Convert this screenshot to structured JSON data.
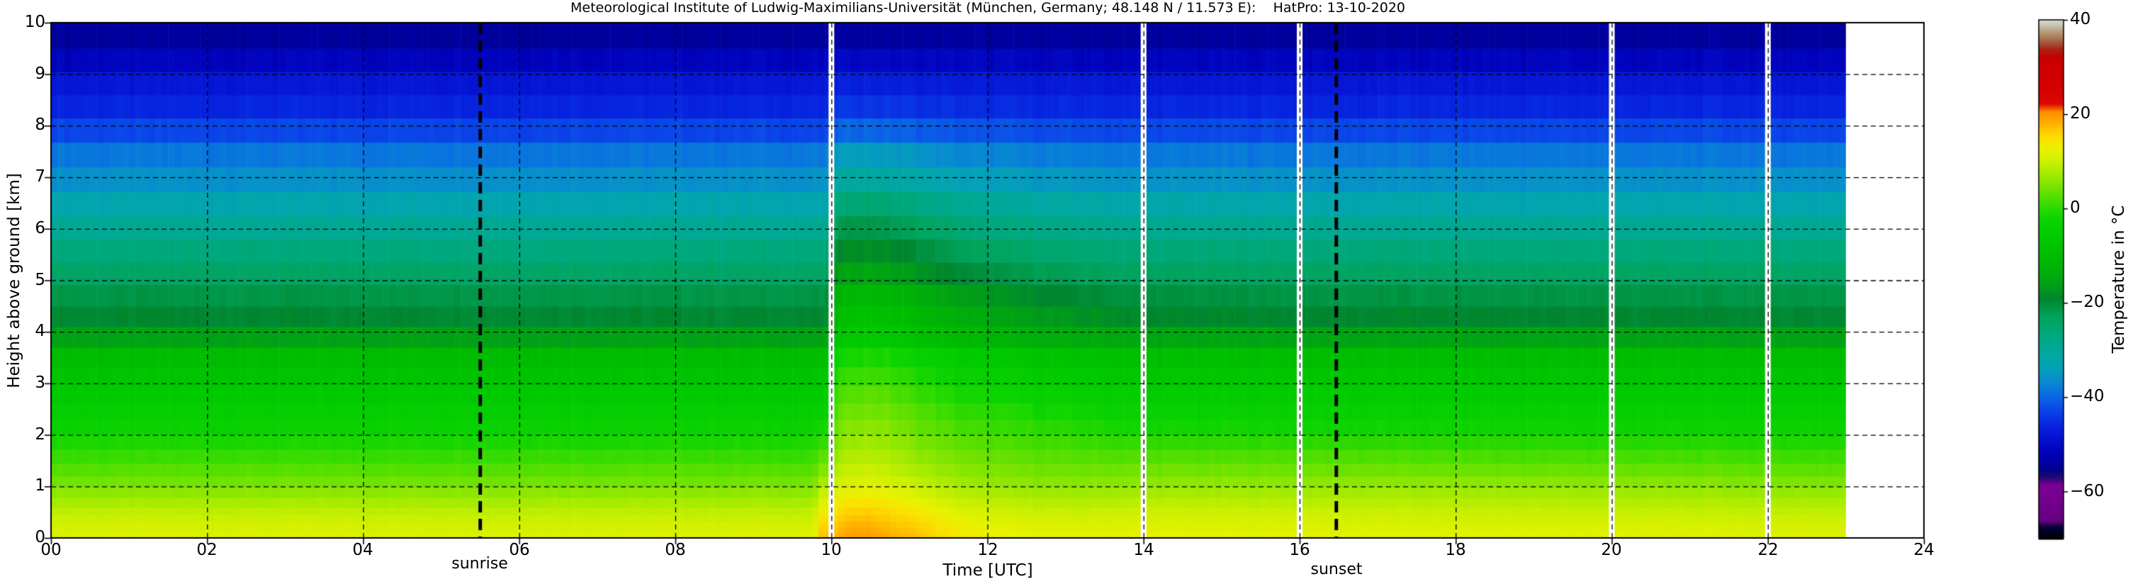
{
  "title": "Meteorological Institute of Ludwig-Maximilians-Universität (München, Germany; 48.148 N / 11.573 E):    HatPro: 13-10-2020",
  "axes": {
    "xlabel": "Time [UTC]",
    "ylabel": "Height above ground [km]",
    "x_tick_labels": [
      "00",
      "02",
      "04",
      "06",
      "08",
      "10",
      "12",
      "14",
      "16",
      "18",
      "20",
      "22",
      "24"
    ],
    "y_tick_labels": [
      "0",
      "1",
      "2",
      "3",
      "4",
      "5",
      "6",
      "7",
      "8",
      "9",
      "10"
    ],
    "x_range_hours": [
      0,
      24
    ],
    "y_range_km": [
      0,
      10
    ],
    "grid": "dashed-black"
  },
  "annotations": {
    "sunrise_label": "sunrise",
    "sunset_label": "sunset",
    "sunrise_time_utc": 5.5,
    "sunset_time_utc": 16.47
  },
  "colorbar": {
    "label": "Temperature in °C",
    "tick_labels": [
      "40",
      "20",
      "0",
      "−20",
      "−40",
      "−60"
    ],
    "tick_values": [
      40,
      20,
      0,
      -20,
      -40,
      -60
    ],
    "range_c": [
      -70,
      40
    ],
    "color_stops": [
      [
        -70,
        "#000000"
      ],
      [
        -68.9,
        "#00001e"
      ],
      [
        -67.6,
        "#000038"
      ],
      [
        -66.9,
        "#2e004e"
      ],
      [
        -66.2,
        "#660082"
      ],
      [
        -58.6,
        "#7c0094"
      ],
      [
        -57.6,
        "#44077c"
      ],
      [
        -56.6,
        "#140c74"
      ],
      [
        -55.2,
        "#000092"
      ],
      [
        -52,
        "#0000b6"
      ],
      [
        -49,
        "#0410d0"
      ],
      [
        -46,
        "#0724de"
      ],
      [
        -43,
        "#0a42e8"
      ],
      [
        -40,
        "#0a66e6"
      ],
      [
        -37,
        "#0888d2"
      ],
      [
        -34,
        "#04a0ba"
      ],
      [
        -31,
        "#00a8a2"
      ],
      [
        -27,
        "#00a880"
      ],
      [
        -23,
        "#00a45c"
      ],
      [
        -20.5,
        "#009240"
      ],
      [
        -19,
        "#00852e"
      ],
      [
        -17,
        "#00991c"
      ],
      [
        -14,
        "#00ac0c"
      ],
      [
        -10,
        "#00bc00"
      ],
      [
        -6,
        "#00ca00"
      ],
      [
        -2,
        "#0cd400"
      ],
      [
        1,
        "#3adc00"
      ],
      [
        4,
        "#6ce200"
      ],
      [
        7,
        "#9eea00"
      ],
      [
        10,
        "#ccf000"
      ],
      [
        12.5,
        "#e8f200"
      ],
      [
        14.5,
        "#f8e400"
      ],
      [
        16.5,
        "#ffcc00"
      ],
      [
        18.5,
        "#ffaa00"
      ],
      [
        20.5,
        "#ff8f00"
      ],
      [
        21.3,
        "#f25400"
      ],
      [
        22.2,
        "#dd0a00"
      ],
      [
        25,
        "#d60000"
      ],
      [
        32,
        "#c80000"
      ],
      [
        33.8,
        "#ac2014"
      ],
      [
        35.3,
        "#a25a40"
      ],
      [
        36.8,
        "#ae8864"
      ],
      [
        38.2,
        "#bfae94"
      ],
      [
        39.2,
        "#cecabc"
      ],
      [
        40,
        "#d6d6d2"
      ]
    ]
  },
  "chart_data": {
    "type": "heatmap",
    "x_name": "time_utc_hours",
    "y_name": "height_above_ground_km",
    "value_name": "temperature_C",
    "data_start_time": 0,
    "data_end_time": 23,
    "data_gap_times": [
      10,
      14,
      16,
      20,
      22
    ],
    "time_resolution_hours": 0.08333,
    "heights": [
      0,
      0.25,
      0.5,
      0.75,
      1,
      1.25,
      1.5,
      2,
      2.5,
      3,
      3.5,
      4,
      4.3,
      4.7,
      5,
      5.5,
      6,
      6.5,
      7,
      7.5,
      8,
      8.5,
      9,
      9.5,
      10
    ],
    "height_layers": [
      0,
      0.1,
      0.2,
      0.32,
      0.45,
      0.6,
      0.78,
      0.98,
      1.2,
      1.45,
      1.72,
      2.0,
      2.3,
      2.62,
      2.96,
      3.32,
      3.7,
      4.1,
      4.5,
      4.92,
      5.35,
      5.8,
      6.25,
      6.72,
      7.2,
      7.68,
      8.15,
      8.6,
      9.05,
      9.5,
      10
    ],
    "times": [
      0,
      9.6,
      9.78,
      9.85,
      9.95,
      10.05,
      10.3,
      10.55,
      10.8,
      11.1,
      11.4,
      11.8,
      12.3,
      13,
      14,
      17,
      20,
      23
    ],
    "temps": [
      [
        11.5,
        10.6,
        9.2,
        7.2,
        5.0,
        3.2,
        1.4,
        -2.0,
        -4.6,
        -7.0,
        -9.8,
        -16.8,
        -19.3,
        -21.0,
        -23.2,
        -26.0,
        -29.0,
        -32.5,
        -36.2,
        -38.8,
        -43.5,
        -46.8,
        -48.5,
        -53.5,
        -55.0
      ],
      [
        11.5,
        10.6,
        9.2,
        7.2,
        5.0,
        3.2,
        1.4,
        -2.0,
        -4.6,
        -7.0,
        -9.8,
        -16.8,
        -19.3,
        -21.0,
        -23.2,
        -26.0,
        -29.0,
        -32.5,
        -36.2,
        -38.8,
        -43.5,
        -46.8,
        -48.5,
        -53.5,
        -55.0
      ],
      [
        11.5,
        10.6,
        9.2,
        7.2,
        5.0,
        3.2,
        1.4,
        -2.0,
        -4.6,
        -7.0,
        -9.8,
        -16.8,
        -19.3,
        -21.0,
        -23.2,
        -26.0,
        -29.0,
        -32.5,
        -36.2,
        -38.8,
        -43.5,
        -46.8,
        -48.5,
        -53.5,
        -55.0
      ],
      [
        17.0,
        15.8,
        13.9,
        11.4,
        8.8,
        6.4,
        4.2,
        -0.4,
        -3.9,
        -6.8,
        -9.7,
        -16.8,
        -19.3,
        -21.0,
        -23.2,
        -26.0,
        -29.0,
        -32.5,
        -36.2,
        -38.8,
        -43.5,
        -46.8,
        -48.5,
        -53.5,
        -55.0
      ],
      [
        17.2,
        15.6,
        13.4,
        10.6,
        7.6,
        5.2,
        3.0,
        -1.2,
        -4.3,
        -6.9,
        -9.8,
        -16.8,
        -19.3,
        -21.0,
        -23.2,
        -26.0,
        -29.0,
        -32.5,
        -36.2,
        -38.8,
        -43.5,
        -46.8,
        -48.5,
        -53.5,
        -55.0
      ],
      [
        18.1,
        16.8,
        15.0,
        12.8,
        10.5,
        8.8,
        7.3,
        4.7,
        2.5,
        0.2,
        -2.6,
        -9.0,
        -10.5,
        -12.8,
        -15.6,
        -19.0,
        -22.4,
        -26.7,
        -31.7,
        -35.4,
        -41.4,
        -45.5,
        -47.7,
        -53.2,
        -54.8
      ],
      [
        19.7,
        18.4,
        16.5,
        14.2,
        11.9,
        10.2,
        8.8,
        6.4,
        4.3,
        2.0,
        -0.8,
        -7.0,
        -8.3,
        -10.8,
        -13.7,
        -17.2,
        -20.7,
        -25.2,
        -30.6,
        -34.6,
        -40.9,
        -45.2,
        -47.5,
        -53.1,
        -54.8
      ],
      [
        19.2,
        18.0,
        16.2,
        14.0,
        11.8,
        10.2,
        8.8,
        6.4,
        4.3,
        2.0,
        -0.9,
        -7.2,
        -8.6,
        -11.0,
        -14.0,
        -17.5,
        -21.0,
        -25.5,
        -30.9,
        -34.9,
        -41.1,
        -45.4,
        -47.6,
        -53.1,
        -54.8
      ],
      [
        18.2,
        17.0,
        15.3,
        13.2,
        11.0,
        9.4,
        8.1,
        5.6,
        3.6,
        1.3,
        -1.6,
        -7.9,
        -9.4,
        -11.8,
        -14.8,
        -18.2,
        -21.6,
        -26.0,
        -31.3,
        -35.3,
        -41.3,
        -45.5,
        -47.7,
        -53.2,
        -54.9
      ],
      [
        17.4,
        16.2,
        14.2,
        12.0,
        9.8,
        8.2,
        6.8,
        4.2,
        2.2,
        -0.1,
        -3.0,
        -9.3,
        -10.9,
        -13.3,
        -16.2,
        -19.6,
        -23.0,
        -27.2,
        -32.3,
        -36.1,
        -41.7,
        -45.8,
        -47.9,
        -53.3,
        -54.9
      ],
      [
        15.4,
        14.3,
        12.6,
        10.5,
        8.4,
        7.0,
        5.6,
        3.0,
        1.0,
        -1.4,
        -4.4,
        -10.8,
        -12.4,
        -14.8,
        -17.7,
        -21.0,
        -24.3,
        -28.3,
        -33.2,
        -36.8,
        -42.1,
        -46.0,
        -48.0,
        -53.3,
        -54.9
      ],
      [
        13.6,
        12.6,
        11.0,
        9.1,
        7.1,
        5.7,
        4.5,
        1.9,
        -0.2,
        -2.7,
        -5.8,
        -12.4,
        -14.2,
        -16.5,
        -19.3,
        -22.5,
        -25.8,
        -29.6,
        -34.2,
        -37.5,
        -42.5,
        -46.3,
        -48.1,
        -53.4,
        -54.9
      ],
      [
        12.6,
        11.7,
        10.2,
        8.3,
        6.3,
        4.9,
        3.7,
        1.1,
        -1.1,
        -3.7,
        -6.9,
        -13.8,
        -15.7,
        -17.9,
        -20.6,
        -23.7,
        -26.9,
        -30.5,
        -34.9,
        -38.0,
        -42.8,
        -46.5,
        -48.2,
        -53.4,
        -54.9
      ],
      [
        12.1,
        11.2,
        9.8,
        7.9,
        5.9,
        4.4,
        3.1,
        0.2,
        -2.2,
        -4.9,
        -8.1,
        -15.2,
        -17.3,
        -19.3,
        -21.8,
        -24.8,
        -27.9,
        -31.4,
        -35.5,
        -38.4,
        -43.1,
        -46.6,
        -48.3,
        -53.5,
        -55.0
      ],
      [
        12.3,
        11.5,
        10.2,
        8.4,
        6.4,
        4.7,
        3.0,
        -0.9,
        -3.6,
        -6.2,
        -9.2,
        -16.2,
        -18.8,
        -20.5,
        -22.7,
        -25.6,
        -28.6,
        -32.1,
        -36.0,
        -38.7,
        -43.3,
        -46.7,
        -48.4,
        -53.5,
        -55.0
      ],
      [
        12.0,
        11.2,
        9.9,
        8.3,
        6.4,
        4.6,
        2.8,
        -1.1,
        -3.9,
        -6.5,
        -9.5,
        -16.5,
        -19.1,
        -20.8,
        -23.0,
        -25.8,
        -28.8,
        -32.3,
        -36.1,
        -38.8,
        -43.4,
        -46.8,
        -48.4,
        -53.5,
        -55.0
      ],
      [
        11.8,
        11.0,
        9.7,
        8.0,
        6.2,
        4.3,
        2.4,
        -1.5,
        -4.2,
        -6.8,
        -9.7,
        -16.7,
        -19.2,
        -20.9,
        -23.1,
        -25.9,
        -28.9,
        -32.4,
        -36.2,
        -38.8,
        -43.5,
        -46.8,
        -48.5,
        -53.5,
        -55.0
      ],
      [
        11.4,
        10.6,
        9.3,
        7.5,
        5.5,
        3.6,
        1.7,
        -1.9,
        -4.6,
        -7.0,
        -9.8,
        -16.8,
        -19.3,
        -21.0,
        -23.2,
        -26.0,
        -29.0,
        -32.5,
        -36.2,
        -38.8,
        -43.5,
        -46.8,
        -48.5,
        -53.5,
        -55.0
      ]
    ]
  }
}
